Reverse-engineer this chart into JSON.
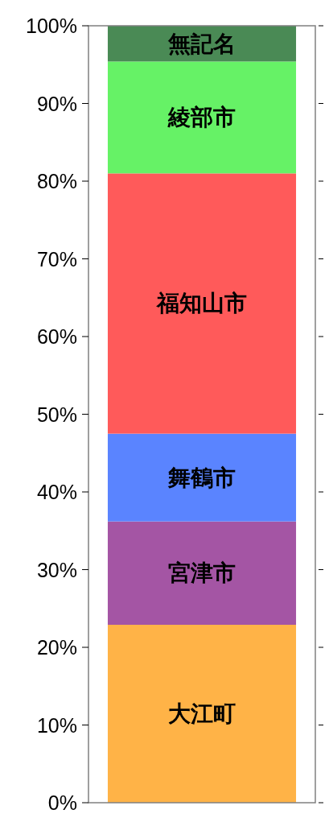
{
  "chart_data": {
    "type": "bar",
    "stacked": true,
    "categories": [
      null
    ],
    "series": [
      {
        "name": "大江町",
        "color": "#ffb347",
        "values": [
          22.9
        ]
      },
      {
        "name": "宮津市",
        "color": "#a455a4",
        "values": [
          13.3
        ]
      },
      {
        "name": "舞鶴市",
        "color": "#5a84ff",
        "values": [
          11.3
        ]
      },
      {
        "name": "福知山市",
        "color": "#ff5a5a",
        "values": [
          33.5
        ]
      },
      {
        "name": "綾部市",
        "color": "#66f266",
        "values": [
          14.4
        ]
      },
      {
        "name": "無記名",
        "color": "#4a8a55",
        "values": [
          4.6
        ]
      }
    ],
    "ylim": [
      0,
      100
    ],
    "yticks": [
      {
        "value": 0,
        "label": "0%"
      },
      {
        "value": 10,
        "label": "10%"
      },
      {
        "value": 20,
        "label": "20%"
      },
      {
        "value": 30,
        "label": "30%"
      },
      {
        "value": 40,
        "label": "40%"
      },
      {
        "value": 50,
        "label": "50%"
      },
      {
        "value": 60,
        "label": "60%"
      },
      {
        "value": 70,
        "label": "70%"
      },
      {
        "value": 80,
        "label": "80%"
      },
      {
        "value": 90,
        "label": "90%"
      },
      {
        "value": 100,
        "label": "100%"
      }
    ],
    "grid": false
  }
}
